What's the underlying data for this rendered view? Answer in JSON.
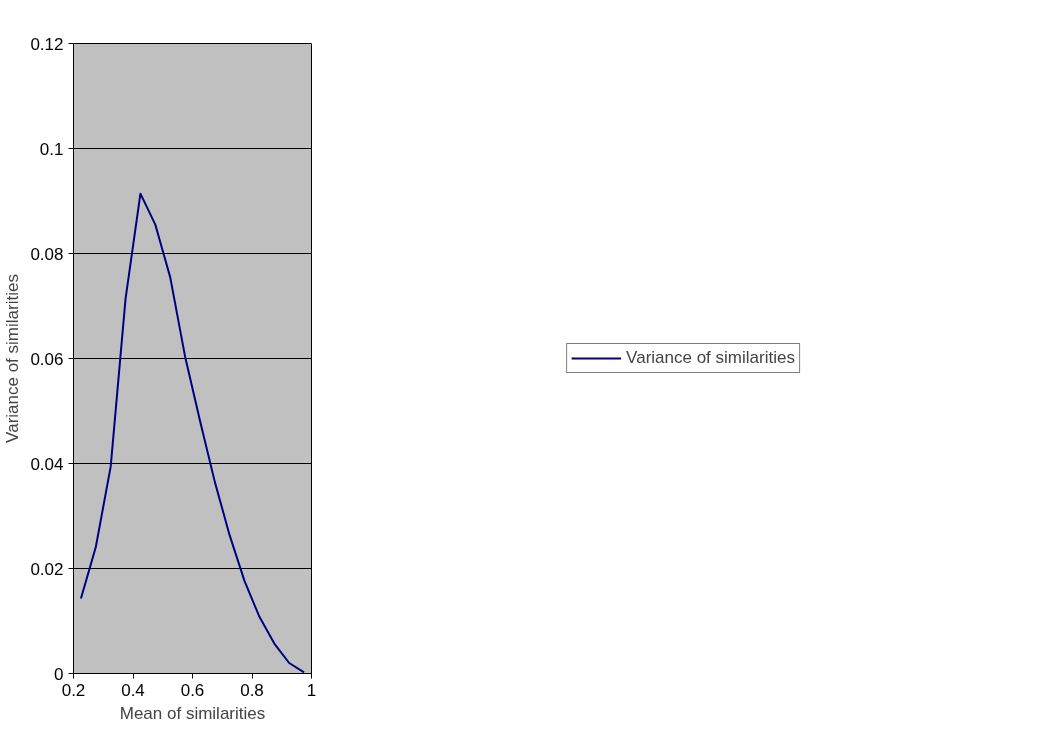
{
  "chart_data": {
    "type": "line",
    "xlabel": "Mean of similarities",
    "ylabel": "Variance of similarities",
    "x": [
      0.225,
      0.275,
      0.325,
      0.375,
      0.425,
      0.475,
      0.525,
      0.575,
      0.625,
      0.675,
      0.725,
      0.775,
      0.825,
      0.875,
      0.925,
      0.975
    ],
    "series": [
      {
        "name": "Variance of similarities",
        "color": "#000080",
        "values": [
          0.0143,
          0.0241,
          0.0394,
          0.0714,
          0.0914,
          0.0855,
          0.0755,
          0.0604,
          0.0482,
          0.0365,
          0.0263,
          0.0176,
          0.0108,
          0.0057,
          0.002,
          0.0002
        ]
      }
    ],
    "xlim": [
      0.2,
      1
    ],
    "ylim": [
      0,
      0.12
    ],
    "xticks": [
      0.2,
      0.4,
      0.6,
      0.8,
      1
    ],
    "yticks": [
      0,
      0.02,
      0.04,
      0.06,
      0.08,
      0.1,
      0.12
    ],
    "grid": "y",
    "legend": "right",
    "marker": "none",
    "line_style": "solid"
  }
}
